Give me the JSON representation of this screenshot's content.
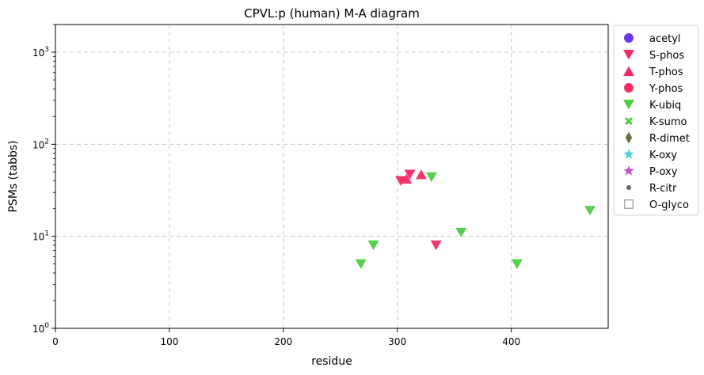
{
  "chart_data": {
    "type": "scatter",
    "title": "CPVL:p (human) M-A diagram",
    "xlabel": "residue",
    "ylabel": "PSMs (tabbs)",
    "xlim": [
      0,
      485
    ],
    "ylim": [
      1,
      2000
    ],
    "yscale": "log",
    "x_ticks": [
      0,
      100,
      200,
      300,
      400
    ],
    "y_ticks": [
      {
        "value": 1,
        "base": "10",
        "exp": "0"
      },
      {
        "value": 10,
        "base": "10",
        "exp": "1"
      },
      {
        "value": 100,
        "base": "10",
        "exp": "2"
      },
      {
        "value": 1000,
        "base": "10",
        "exp": "3"
      }
    ],
    "grid": true,
    "legend_position": "outside-right",
    "series": [
      {
        "name": "acetyl",
        "marker": "circle",
        "color": "#6a35f0",
        "points": []
      },
      {
        "name": "S-phos",
        "marker": "triangle-down",
        "color": "#f72a63",
        "points": [
          [
            303,
            40
          ],
          [
            311,
            47
          ],
          [
            334,
            8
          ]
        ]
      },
      {
        "name": "T-phos",
        "marker": "triangle-up",
        "color": "#f72a63",
        "points": [
          [
            308,
            42
          ],
          [
            321,
            47
          ]
        ]
      },
      {
        "name": "Y-phos",
        "marker": "circle",
        "color": "#f72a63",
        "points": []
      },
      {
        "name": "K-ubiq",
        "marker": "triangle-down",
        "color": "#4ccf3f",
        "points": [
          [
            268,
            5
          ],
          [
            279,
            8
          ],
          [
            330,
            44
          ],
          [
            356,
            11
          ],
          [
            405,
            5
          ],
          [
            469,
            19
          ]
        ]
      },
      {
        "name": "K-sumo",
        "marker": "x",
        "color": "#4ccf3f",
        "points": []
      },
      {
        "name": "R-dimet",
        "marker": "diamond",
        "color": "#6b6b47",
        "points": []
      },
      {
        "name": "K-oxy",
        "marker": "star",
        "color": "#4dd1d6",
        "points": []
      },
      {
        "name": "P-oxy",
        "marker": "star",
        "color": "#c84dd1",
        "points": []
      },
      {
        "name": "R-citr",
        "marker": "dot",
        "color": "#666666",
        "points": []
      },
      {
        "name": "O-glyco",
        "marker": "square-open",
        "color": "#999999",
        "points": []
      }
    ]
  }
}
